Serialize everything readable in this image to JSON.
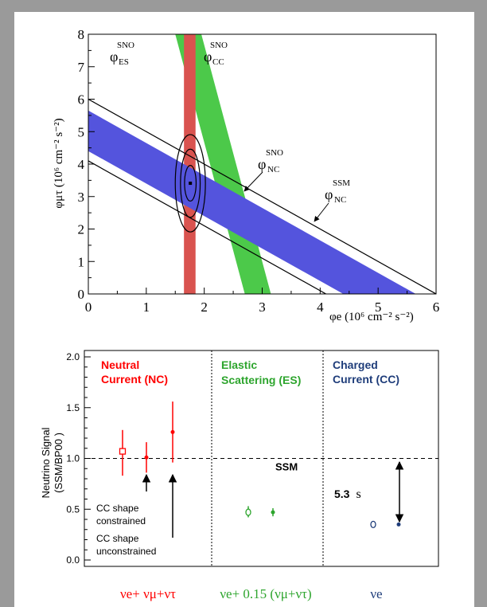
{
  "chart_data": [
    {
      "type": "contour",
      "xlabel": "φe (10⁶ cm⁻² s⁻²)",
      "ylabel": "φμτ (10⁶ cm⁻² s⁻²)",
      "xlim": [
        0,
        6
      ],
      "ylim": [
        0,
        8
      ],
      "x_ticks": [
        "0",
        "1",
        "2",
        "3",
        "4",
        "5",
        "6"
      ],
      "y_ticks": [
        "0",
        "1",
        "2",
        "3",
        "4",
        "5",
        "6",
        "7",
        "8"
      ],
      "labels": {
        "es": {
          "sym": "φ",
          "sup": "SNO",
          "sub": "ES"
        },
        "cc": {
          "sym": "φ",
          "sup": "SNO",
          "sub": "CC"
        },
        "nc_sno": {
          "sym": "φ",
          "sup": "SNO",
          "sub": "NC"
        },
        "nc_ssm": {
          "sym": "φ",
          "sup": "SSM",
          "sub": "NC"
        }
      },
      "bands": {
        "cc": {
          "x_min": 1.65,
          "x_max": 1.85,
          "color": "#d9534f"
        },
        "es": {
          "color": "#4cc94a",
          "lower": [
            [
              1.5,
              8
            ],
            [
              2.7,
              0
            ]
          ],
          "upper": [
            [
              1.95,
              8
            ],
            [
              3.15,
              0
            ]
          ]
        },
        "nc_sno": {
          "color": "#5454dd",
          "sum_min": 4.4,
          "sum_max": 5.65
        },
        "nc_ssm": {
          "color": "#000000",
          "sum_min": 4.1,
          "sum_max": 6.0
        }
      },
      "best_fit": {
        "x": 1.76,
        "y": 3.41
      },
      "contours": [
        {
          "cx": 1.76,
          "cy": 3.41,
          "rx": 0.1,
          "ry": 0.55
        },
        {
          "cx": 1.76,
          "cy": 3.41,
          "rx": 0.17,
          "ry": 1.05
        },
        {
          "cx": 1.76,
          "cy": 3.41,
          "rx": 0.26,
          "ry": 1.5
        }
      ]
    },
    {
      "type": "scatter",
      "ylabel_line1": "Neutrino Signal",
      "ylabel_line2": "(SSM/BP00 )",
      "ylim": [
        0,
        2.0
      ],
      "y_ticks": [
        "0.0",
        "0.5",
        "1.0",
        "1.5",
        "2.0"
      ],
      "ssm_level": 1.0,
      "ssm_label": "SSM",
      "sections": [
        {
          "title_line1": "Neutral",
          "title_line2": "Current (NC)",
          "color": "#ff0000"
        },
        {
          "title_line1": "Elastic",
          "title_line2": "Scattering (ES)",
          "color": "#2ea52e"
        },
        {
          "title_line1": "Charged",
          "title_line2": "Current (CC)",
          "color": "#1f3d7a"
        }
      ],
      "series": [
        {
          "section": 0,
          "points": [
            {
              "y": 1.07,
              "lo": 0.83,
              "hi": 1.28,
              "marker": "open-square"
            },
            {
              "y": 1.01,
              "lo": 0.86,
              "hi": 1.16,
              "marker": "dot"
            },
            {
              "y": 1.26,
              "lo": 0.96,
              "hi": 1.56,
              "marker": "dot"
            }
          ]
        },
        {
          "section": 1,
          "points": [
            {
              "y": 0.47,
              "lo": 0.42,
              "hi": 0.53,
              "marker": "open-circle"
            },
            {
              "y": 0.47,
              "lo": 0.43,
              "hi": 0.51,
              "marker": "dot"
            }
          ]
        },
        {
          "section": 2,
          "points": [
            {
              "y": 0.35,
              "lo": 0.33,
              "hi": 0.37,
              "marker": "open-circle"
            },
            {
              "y": 0.35,
              "lo": 0.34,
              "hi": 0.36,
              "marker": "dot"
            }
          ]
        }
      ],
      "annotations": {
        "nc_constrained_line1": "CC shape",
        "nc_constrained_line2": "constrained",
        "nc_unconstrained_line1": "CC shape",
        "nc_unconstrained_line2": "unconstrained",
        "significance": "5.3",
        "significance_unit": "s"
      },
      "bottom_labels": [
        {
          "text": "νe+ νμ+ντ",
          "color": "#ff0000"
        },
        {
          "text": "νe+ 0.15 (νμ+ντ)",
          "color": "#2ea52e"
        },
        {
          "text": "νe",
          "color": "#1f3d7a"
        }
      ]
    }
  ]
}
